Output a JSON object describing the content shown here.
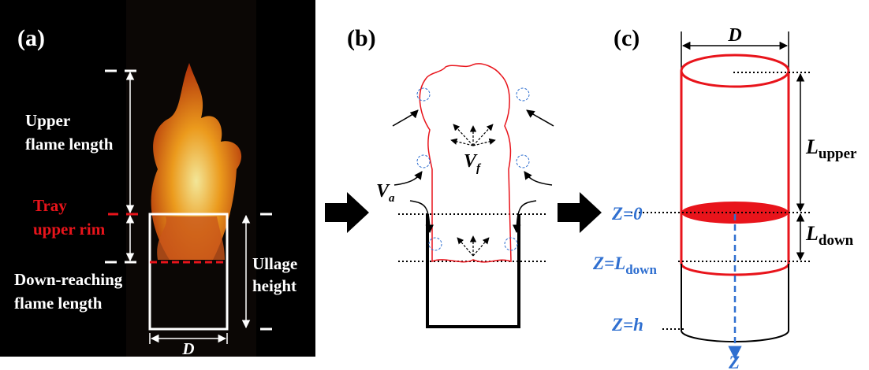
{
  "panel_a": {
    "label": "(a)",
    "upper_flame_length": [
      "Upper",
      "flame length"
    ],
    "tray_upper_rim": [
      "Tray",
      "upper rim"
    ],
    "down_reaching_flame_length": [
      "Down-reaching",
      "flame length"
    ],
    "ullage_height": [
      "Ullage",
      "height"
    ],
    "diameter": "D"
  },
  "panel_b": {
    "label": "(b)",
    "air_velocity": {
      "main": "V",
      "sub": "a"
    },
    "flame_velocity": {
      "main": "V",
      "sub": "f"
    }
  },
  "panel_c": {
    "label": "(c)",
    "diameter": "D",
    "upper_length": {
      "main": "L",
      "sub": "upper"
    },
    "down_length": {
      "main": "L",
      "sub": "down"
    },
    "z_zero": "Z=0",
    "z_down": {
      "main": "Z=L",
      "sub": "down"
    },
    "z_h": "Z=h",
    "z_axis": "Z"
  }
}
